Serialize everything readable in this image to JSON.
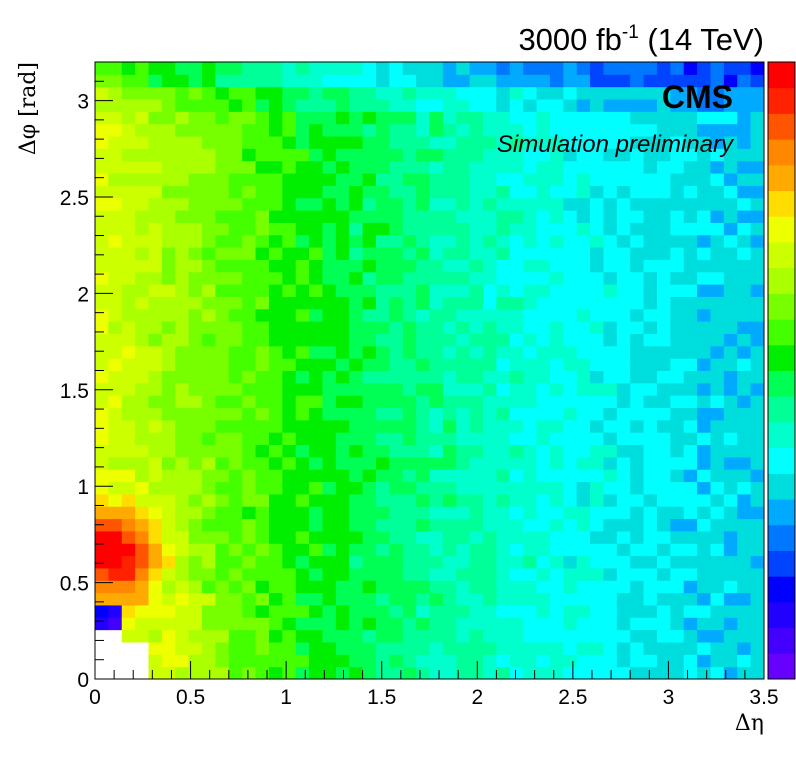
{
  "header": {
    "lumi_value": "3000 fb",
    "lumi_exponent": "-1",
    "energy": " (14 TeV)"
  },
  "labels": {
    "experiment": "CMS",
    "status": "Simulation preliminary"
  },
  "chart_data": {
    "type": "heatmap",
    "xlabel": "Δη",
    "ylabel": "Δφ [rad]",
    "xlim": [
      0,
      3.5
    ],
    "ylim": [
      0,
      3.2
    ],
    "x_ticks": [
      "0",
      "0.5",
      "1",
      "1.5",
      "2",
      "2.5",
      "3",
      "3.5"
    ],
    "y_ticks": [
      "0",
      "0.5",
      "1",
      "1.5",
      "2",
      "2.5",
      "3"
    ],
    "bins_x": 50,
    "bins_y": 50,
    "colormap": [
      "#6600ff",
      "#4400ff",
      "#2200ff",
      "#0000ff",
      "#0044ff",
      "#0077ff",
      "#00aaff",
      "#00dddd",
      "#00ffff",
      "#00ffcc",
      "#00ff99",
      "#00ff55",
      "#00ee00",
      "#44ff00",
      "#77ff00",
      "#aaff00",
      "#ccff00",
      "#eeff00",
      "#ffdd00",
      "#ffaa00",
      "#ff8800",
      "#ff5500",
      "#ff2200",
      "#ff0000"
    ],
    "empty_color": "#ffffff",
    "grid": false,
    "legend": "color scale on right"
  }
}
